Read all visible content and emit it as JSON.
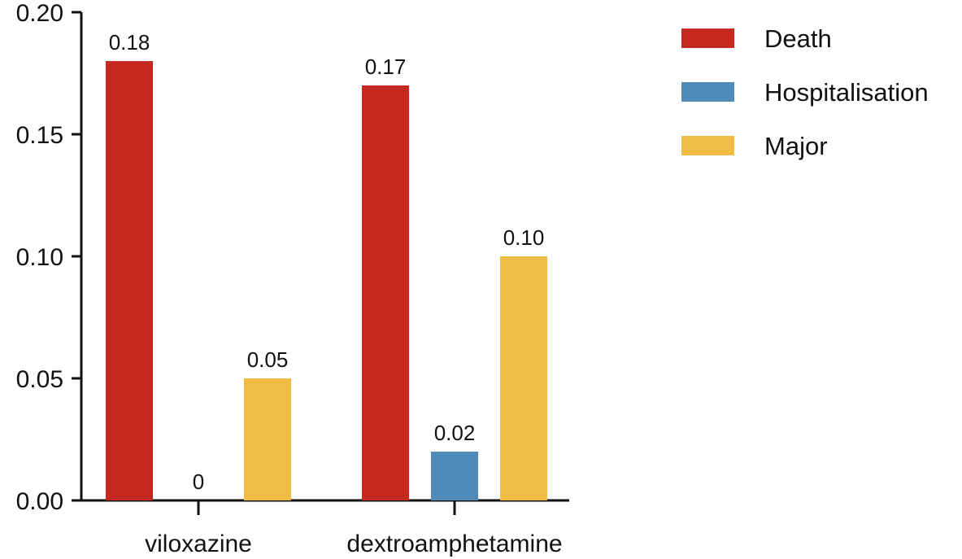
{
  "chart_data": {
    "type": "bar",
    "title": "",
    "xlabel": "",
    "ylabel": "",
    "ylim": [
      0,
      0.2
    ],
    "yticks": [
      "0.00",
      "0.05",
      "0.10",
      "0.15",
      "0.20"
    ],
    "categories": [
      "viloxazine",
      "dextroamphetamine"
    ],
    "series": [
      {
        "name": "Death",
        "color": "#c4281f",
        "values": [
          0.18,
          0.17
        ],
        "labels": [
          "0.18",
          "0.17"
        ]
      },
      {
        "name": "Hospitalisation",
        "color": "#4f8ab8",
        "values": [
          0,
          0.02
        ],
        "labels": [
          "0",
          "0.02"
        ]
      },
      {
        "name": "Major",
        "color": "#efbc44",
        "values": [
          0.05,
          0.1
        ],
        "labels": [
          "0.05",
          "0.10"
        ]
      }
    ],
    "legend_position": "top-right",
    "grid": false
  }
}
